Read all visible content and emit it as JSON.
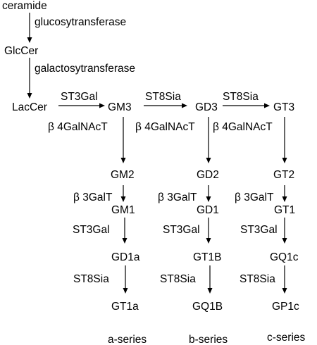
{
  "colors": {
    "line": "#000000",
    "text": "#000000",
    "background": "#ffffff"
  },
  "nodes": {
    "ceramide": "ceramide",
    "glccer": "GlcCer",
    "laccer": "LacCer",
    "gm3": "GM3",
    "gd3": "GD3",
    "gt3": "GT3",
    "gm2": "GM2",
    "gd2": "GD2",
    "gt2": "GT2",
    "gm1": "GM1",
    "gd1": "GD1",
    "gt1": "GT1",
    "gd1a": "GD1a",
    "gt1b": "GT1B",
    "gq1c": "GQ1c",
    "gt1a": "GT1a",
    "gq1b": "GQ1B",
    "gp1c": "GP1c"
  },
  "enzymes": {
    "glucosyltransferase": "glucosytransferase",
    "galactosyltransferase": "galactosytransferase",
    "st3gal_laccer_gm3": "ST3Gal",
    "st8sia_gm3_gd3": "ST8Sia",
    "st8sia_gd3_gt3": "ST8Sia",
    "b4galnact_a": "β 4GalNAcT",
    "b4galnact_b": "β 4GalNAcT",
    "b4galnact_c": "β 4GalNAcT",
    "b3galt_a": "β 3GalT",
    "b3galt_b": "β 3GalT",
    "b3galt_c": "β 3GalT",
    "st3gal_a": "ST3Gal",
    "st3gal_b": "ST3Gal",
    "st3gal_c": "ST3Gal",
    "st8sia_a": "ST8Sia",
    "st8sia_b": "ST8Sia",
    "st8sia_c": "ST8Sia"
  },
  "series": {
    "a": "a-series",
    "b": "b-series",
    "c": "c-series"
  }
}
